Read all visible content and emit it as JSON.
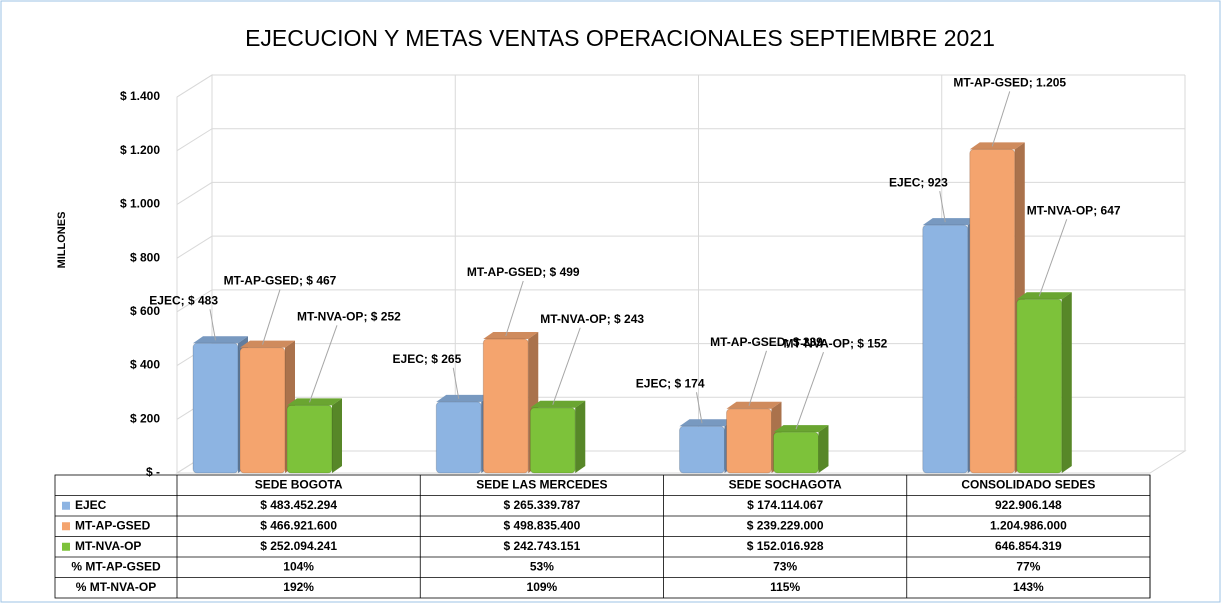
{
  "chart_data": {
    "type": "bar",
    "title": "EJECUCION Y METAS VENTAS OPERACIONALES SEPTIEMBRE 2021",
    "ylabel": "MILLONES",
    "categories": [
      "SEDE BOGOTA",
      "SEDE LAS MERCEDES",
      "SEDE SOCHAGOTA",
      "CONSOLIDADO SEDES"
    ],
    "series": [
      {
        "name": "EJEC",
        "color": "#8db4e2",
        "values": [
          483,
          265,
          174,
          923
        ],
        "value_labels": [
          "EJEC;  $ 483",
          "EJEC;  $ 265",
          "EJEC;  $ 174",
          "EJEC;  923"
        ]
      },
      {
        "name": "MT-AP-GSED",
        "color": "#f4a46e",
        "values": [
          467,
          499,
          239,
          1205
        ],
        "value_labels": [
          "MT-AP-GSED; $ 467",
          "MT-AP-GSED; $ 499",
          "MT-AP-GSED; $ 239",
          "MT-AP-GSED; 1.205"
        ]
      },
      {
        "name": "MT-NVA-OP",
        "color": "#7dc23a",
        "values": [
          252,
          243,
          152,
          647
        ],
        "value_labels": [
          "MT-NVA-OP; $ 252",
          "MT-NVA-OP; $ 243",
          "MT-NVA-OP; $ 152",
          "MT-NVA-OP; 647"
        ]
      }
    ],
    "ylim": [
      0,
      1400
    ],
    "yticks": [
      {
        "value": 0,
        "label": "$ -"
      },
      {
        "value": 200,
        "label": "$ 200"
      },
      {
        "value": 400,
        "label": "$ 400"
      },
      {
        "value": 600,
        "label": "$ 600"
      },
      {
        "value": 800,
        "label": "$ 800"
      },
      {
        "value": 1000,
        "label": "$ 1.000"
      },
      {
        "value": 1200,
        "label": "$ 1.200"
      },
      {
        "value": 1400,
        "label": "$ 1.400"
      }
    ],
    "grid": true,
    "table": {
      "rows": [
        {
          "cells": [
            "$ 483.452.294",
            "$ 265.339.787",
            "$ 174.114.067",
            "922.906.148"
          ]
        },
        {
          "cells": [
            "$ 466.921.600",
            "$ 498.835.400",
            "$ 239.229.000",
            "1.204.986.000"
          ]
        },
        {
          "cells": [
            "$ 252.094.241",
            "$ 242.743.151",
            "$ 152.016.928",
            "646.854.319"
          ]
        },
        {
          "label": "% MT-AP-GSED",
          "cells": [
            "104%",
            "53%",
            "73%",
            "77%"
          ]
        },
        {
          "label": "% MT-NVA-OP",
          "cells": [
            "192%",
            "109%",
            "115%",
            "143%"
          ]
        }
      ]
    }
  }
}
